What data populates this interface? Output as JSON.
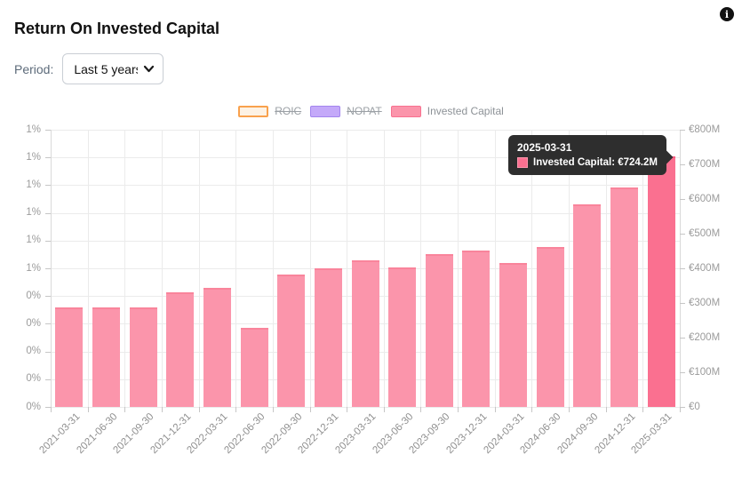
{
  "header": {
    "title": "Return On Invested Capital"
  },
  "controls": {
    "period_label": "Period:",
    "period_value": "Last 5 years"
  },
  "legend": [
    {
      "label": "ROIC",
      "struck": true,
      "fill": "#fdf2e4",
      "border": "#f9a14d",
      "border_w": 2
    },
    {
      "label": "NOPAT",
      "struck": true,
      "fill": "#c4a9f9",
      "border": "#a385ee",
      "border_w": 1
    },
    {
      "label": "Invested Capital",
      "struck": false,
      "fill": "#fb95ab",
      "border": "#f8718f",
      "border_w": 1
    }
  ],
  "colors": {
    "bar_fill": "#fb95ab",
    "bar_border": "#f9849b",
    "bar_highlight_fill": "#fa7090",
    "bar_highlight_border": "#f85c80",
    "tooltip_bg": "#2e2e2e",
    "grid": "#ebebeb",
    "axis": "#d9d9d9"
  },
  "chart_data": {
    "type": "bar",
    "title": "Return On Invested Capital",
    "categories": [
      "2021-03-31",
      "2021-06-30",
      "2021-09-30",
      "2021-12-31",
      "2022-03-31",
      "2022-06-30",
      "2022-09-30",
      "2022-12-31",
      "2023-03-31",
      "2023-06-30",
      "2023-09-30",
      "2023-12-31",
      "2024-03-31",
      "2024-06-30",
      "2024-09-30",
      "2024-12-31",
      "2025-03-31"
    ],
    "series": [
      {
        "name": "ROIC",
        "axis": "left",
        "visible": false
      },
      {
        "name": "NOPAT",
        "axis": "left",
        "visible": false
      },
      {
        "name": "Invested Capital",
        "axis": "right",
        "visible": true,
        "unit": "EUR millions",
        "values": [
          287,
          288,
          287,
          330,
          344,
          228,
          381,
          399,
          424,
          403,
          442,
          452,
          415,
          461,
          585,
          634,
          724.2
        ]
      }
    ],
    "left_axis": {
      "ticks": [
        "1%",
        "1%",
        "1%",
        "1%",
        "1%",
        "1%",
        "0%",
        "0%",
        "0%",
        "0%",
        "0%"
      ],
      "range_percent": [
        0,
        1
      ],
      "step_percent": 0.1
    },
    "right_axis": {
      "ticks": [
        "€800M",
        "€700M",
        "€600M",
        "€500M",
        "€400M",
        "€300M",
        "€200M",
        "€100M",
        "€0"
      ],
      "range_millions": [
        0,
        800
      ],
      "step_millions": 100
    },
    "grid": true,
    "legend_position": "top",
    "highlighted_index": 16,
    "tooltip": {
      "title": "2025-03-31",
      "series": "Invested Capital",
      "value_label": "€724.2M",
      "body": "Invested Capital: €724.2M"
    }
  }
}
